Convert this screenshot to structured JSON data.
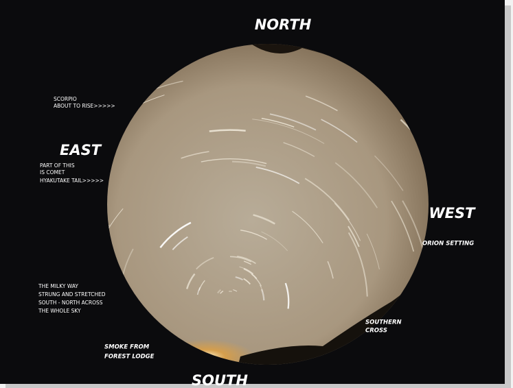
{
  "annotations": {
    "north": "NORTH",
    "east": "EAST",
    "west": "WEST",
    "south": "SOUTH",
    "scorpio": [
      "SCORPIO",
      "ABOUT TO RISE>>>>>"
    ],
    "comet": [
      "PART OF THIS",
      "IS COMET",
      "HYAKUTAKE TAIL>>>>>"
    ],
    "orion": [
      "ORION SETTING"
    ],
    "milky_way": [
      "THE MILKY WAY",
      "STRUNG AND STRETCHED",
      "SOUTH - NORTH ACROSS",
      "THE WHOLE SKY"
    ],
    "southern_cross": [
      "SOUTHERN",
      "CROSS"
    ],
    "smoke": [
      "SMOKE FROM",
      "FOREST LODGE"
    ]
  }
}
